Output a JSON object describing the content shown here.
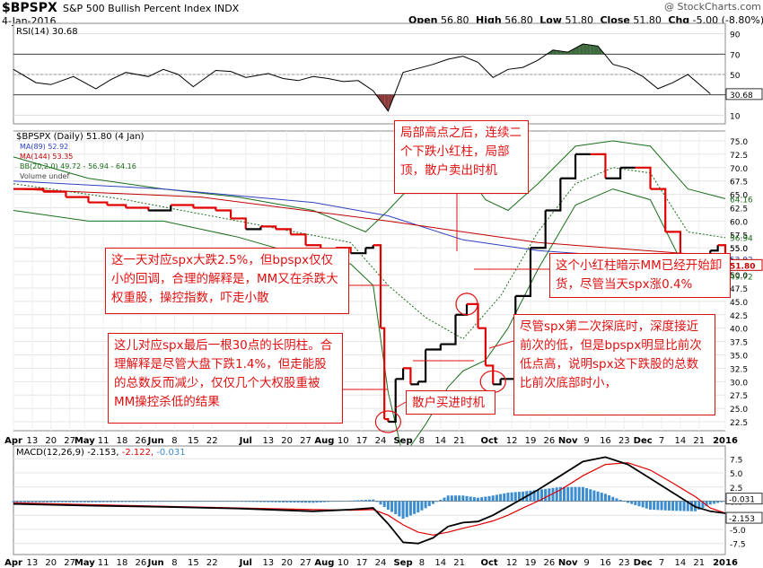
{
  "header": {
    "symbol": "$BPSPX",
    "description": "S&P 500 Bullish Percent Index INDX",
    "date": "4-Jan-2016",
    "watermark": "@ StockCharts.com",
    "ohlc": {
      "open_label": "Open",
      "open": "56.80",
      "high_label": "High",
      "high": "56.80",
      "low_label": "Low",
      "low": "51.80",
      "close_label": "Close",
      "close": "51.80",
      "chg_label": "Chg",
      "chg": "-5.00 (-8.80%)"
    }
  },
  "chart_data": [
    {
      "type": "line",
      "panel": "RSI",
      "legend": "RSI(14) 30.68",
      "y_ticks": [
        10,
        30,
        50,
        70,
        90
      ],
      "levels": [
        30,
        50,
        70
      ],
      "last_value_label": "30.68",
      "x": [
        0,
        6,
        10,
        16,
        22,
        26,
        30,
        36,
        40,
        44,
        48,
        54,
        58,
        62,
        68,
        72,
        76,
        80,
        84,
        88,
        92,
        96,
        100,
        104,
        108,
        112,
        116,
        120,
        124,
        128,
        132,
        136,
        140,
        144,
        148,
        152,
        156,
        160,
        164,
        168,
        172,
        176,
        180,
        186
      ],
      "values": [
        55,
        42,
        40,
        48,
        36,
        45,
        52,
        48,
        55,
        50,
        38,
        54,
        53,
        47,
        51,
        46,
        44,
        48,
        46,
        43,
        44,
        34,
        14,
        52,
        56,
        60,
        65,
        68,
        62,
        47,
        55,
        57,
        64,
        74,
        72,
        80,
        78,
        60,
        56,
        48,
        36,
        42,
        50,
        31
      ]
    },
    {
      "type": "line",
      "panel": "price",
      "title": "$BPSPX (Daily) 51.80 (4 Jan)",
      "legend": [
        "MA(89) 52.92",
        "MA(144) 53.35",
        "BB(20,2.0) 49.72 - 56.94 - 64.16",
        "Volume undef"
      ],
      "y_ticks": [
        22.5,
        25.0,
        27.5,
        30.0,
        32.5,
        35.0,
        37.5,
        40.0,
        42.5,
        45.0,
        47.5,
        50.0,
        52.5,
        55.0,
        57.5,
        60.0,
        62.5,
        65.0,
        67.5,
        70.0,
        72.5,
        75.0
      ],
      "right_labels": [
        "64.16",
        "56.94",
        "55.0",
        "52.92",
        "52.5",
        "51.80",
        "49.72"
      ],
      "x_labels": [
        {
          "i": 0,
          "t": "Apr"
        },
        {
          "i": 5,
          "t": "13"
        },
        {
          "i": 10,
          "t": "20"
        },
        {
          "i": 15,
          "t": "27"
        },
        {
          "i": 19,
          "t": "May"
        },
        {
          "i": 24,
          "t": "11"
        },
        {
          "i": 29,
          "t": "18"
        },
        {
          "i": 34,
          "t": "26"
        },
        {
          "i": 38,
          "t": "Jun"
        },
        {
          "i": 43,
          "t": "8"
        },
        {
          "i": 48,
          "t": "15"
        },
        {
          "i": 53,
          "t": "22"
        },
        {
          "i": 62,
          "t": "Jul"
        },
        {
          "i": 68,
          "t": "13"
        },
        {
          "i": 73,
          "t": "20"
        },
        {
          "i": 78,
          "t": "27"
        },
        {
          "i": 83,
          "t": "Aug"
        },
        {
          "i": 88,
          "t": "10"
        },
        {
          "i": 93,
          "t": "17"
        },
        {
          "i": 98,
          "t": "24"
        },
        {
          "i": 104,
          "t": "Sep"
        },
        {
          "i": 109,
          "t": "8"
        },
        {
          "i": 114,
          "t": "14"
        },
        {
          "i": 119,
          "t": "21"
        },
        {
          "i": 127,
          "t": "Oct"
        },
        {
          "i": 133,
          "t": "12"
        },
        {
          "i": 138,
          "t": "19"
        },
        {
          "i": 143,
          "t": "26"
        },
        {
          "i": 148,
          "t": "Nov"
        },
        {
          "i": 153,
          "t": "9"
        },
        {
          "i": 158,
          "t": "16"
        },
        {
          "i": 163,
          "t": "23"
        },
        {
          "i": 168,
          "t": "Dec"
        },
        {
          "i": 173,
          "t": "7"
        },
        {
          "i": 178,
          "t": "14"
        },
        {
          "i": 183,
          "t": "21"
        },
        {
          "i": 190,
          "t": "2016"
        }
      ],
      "x": [
        0,
        8,
        14,
        20,
        25,
        30,
        36,
        42,
        48,
        54,
        58,
        62,
        66,
        70,
        74,
        78,
        82,
        86,
        90,
        94,
        96,
        98,
        99,
        100,
        102,
        104,
        106,
        108,
        110,
        114,
        118,
        121,
        124,
        126,
        128,
        130,
        134,
        138,
        142,
        146,
        150,
        154,
        158,
        162,
        166,
        170,
        174,
        178,
        182,
        186,
        188,
        190
      ],
      "values": [
        66.0,
        65.5,
        64.5,
        63.5,
        63.0,
        62.5,
        62.0,
        63.0,
        62.5,
        62.0,
        60.5,
        58.5,
        59.0,
        58.5,
        57.5,
        55.5,
        54.5,
        55.0,
        54.0,
        55.0,
        55.5,
        40.0,
        23.0,
        22.5,
        30.5,
        32.5,
        29.5,
        30.0,
        36.0,
        37.0,
        42.5,
        44.5,
        40.0,
        33.0,
        29.5,
        30.5,
        46.0,
        55.0,
        62.0,
        68.0,
        72.5,
        72.5,
        68.0,
        70.0,
        70.0,
        66.0,
        58.0,
        53.0,
        53.0,
        54.5,
        55.5,
        51.8
      ],
      "ma89_x": [
        0,
        40,
        80,
        100,
        120,
        140,
        160,
        190
      ],
      "ma89_values": [
        67.5,
        66.0,
        63.5,
        61.0,
        56.5,
        54.5,
        53.5,
        52.9
      ],
      "ma144_x": [
        0,
        50,
        100,
        140,
        190
      ],
      "ma144_values": [
        66.0,
        64.5,
        60.0,
        56.0,
        53.4
      ],
      "bb_upper_x": [
        0,
        20,
        40,
        60,
        80,
        94,
        100,
        104,
        110,
        116,
        120,
        126,
        132,
        140,
        150,
        160,
        170,
        180,
        190
      ],
      "bb_upper": [
        72.0,
        68.0,
        66.0,
        64.5,
        62.0,
        58.0,
        62.0,
        65.0,
        68.0,
        70.0,
        70.0,
        64.0,
        62.0,
        67.0,
        74.0,
        75.0,
        74.0,
        66.0,
        64.2
      ],
      "bb_lower_x": [
        0,
        20,
        40,
        60,
        80,
        90,
        96,
        100,
        104,
        110,
        116,
        120,
        126,
        132,
        140,
        150,
        160,
        170,
        180,
        190
      ],
      "bb_lower": [
        62.0,
        60.0,
        60.0,
        57.0,
        53.0,
        52.0,
        48.0,
        28.0,
        16.0,
        22.0,
        29.0,
        32.0,
        34.0,
        40.0,
        51.0,
        63.0,
        66.0,
        64.0,
        50.0,
        49.7
      ],
      "bb_mid_x": [
        0,
        30,
        60,
        90,
        100,
        110,
        120,
        130,
        140,
        150,
        160,
        170,
        180,
        190
      ],
      "bb_mid": [
        67.0,
        64.0,
        60.0,
        56.0,
        48.0,
        42.0,
        38.0,
        46.0,
        58.0,
        67.0,
        70.0,
        69.0,
        58.0,
        56.9
      ]
    },
    {
      "type": "line",
      "panel": "MACD",
      "legend": "MACD(12,26,9) -2.153, -2.122, -0.031",
      "legend_parts": [
        "MACD(12,26,9) -2.153, ",
        "-2.122, ",
        "-0.031"
      ],
      "y_ticks": [
        -7.5,
        -5.0,
        -2.5,
        0.0,
        2.5,
        5.0,
        7.5
      ],
      "right_labels": [
        "-0.031",
        "-2.153"
      ],
      "x": [
        0,
        20,
        40,
        60,
        80,
        90,
        96,
        100,
        104,
        108,
        112,
        116,
        120,
        124,
        128,
        132,
        136,
        140,
        146,
        152,
        158,
        164,
        170,
        176,
        182,
        186,
        190
      ],
      "macd": [
        -0.5,
        -0.8,
        -1.0,
        -1.3,
        -1.8,
        -1.5,
        -1.2,
        -4.0,
        -7.3,
        -7.5,
        -6.5,
        -4.5,
        -3.8,
        -3.6,
        -2.5,
        -1.0,
        0.5,
        2.0,
        4.5,
        7.0,
        7.8,
        6.5,
        4.0,
        1.5,
        -1.0,
        -1.8,
        -2.15
      ],
      "signal": [
        -0.3,
        -0.6,
        -0.9,
        -1.2,
        -1.5,
        -1.6,
        -1.5,
        -2.5,
        -4.2,
        -5.5,
        -6.0,
        -5.5,
        -4.8,
        -4.2,
        -3.5,
        -2.5,
        -1.2,
        0.0,
        2.0,
        4.5,
        6.5,
        6.8,
        5.5,
        3.2,
        0.8,
        -1.2,
        -2.12
      ],
      "histogram": [
        -0.2,
        -0.2,
        -0.1,
        -0.1,
        -0.3,
        0.1,
        0.3,
        -1.5,
        -3.1,
        -2.0,
        -0.5,
        1.0,
        1.0,
        0.6,
        1.0,
        1.5,
        1.7,
        2.0,
        2.5,
        2.5,
        1.3,
        -0.3,
        -1.5,
        -1.7,
        -1.8,
        -0.6,
        -0.03
      ]
    }
  ],
  "annotations": [
    "局部高点之后，连续二个下跌小红柱，局部顶，散户卖出时机",
    "这一天对应spx大跌2.5%，但bpspx仅仅小的回调，合理的解释是，MM又在杀跌大权重股，操控指数，吓走小散",
    "这个小红柱暗示MM已经开始卸货，尽管当天spx涨0.4%",
    "这儿对应spx最后一根30点的长阴柱。合理解释是尽管大盘下跌1.4%，但走能股的总数反而减少，仅仅几个大权股重被MM操控杀低的结果",
    "散户买进时机",
    "尽管spx第二次探底时，深度接近前次的低，但是bpspx明显比前次低点高，说明spx这下跌股的总数比前次底部时小，"
  ],
  "colors": {
    "price_up": "#000000",
    "price_down": "#e00000",
    "ma89": "#3040c0",
    "ma144": "#c00000",
    "bb": "#1a6e1a",
    "macd": "#000000",
    "signal": "#e00000",
    "hist": "#3c8cd0",
    "rsi_fill": "#3d6b3d",
    "rsi_low_fill": "#8b3a3a",
    "note": "#e01010"
  }
}
